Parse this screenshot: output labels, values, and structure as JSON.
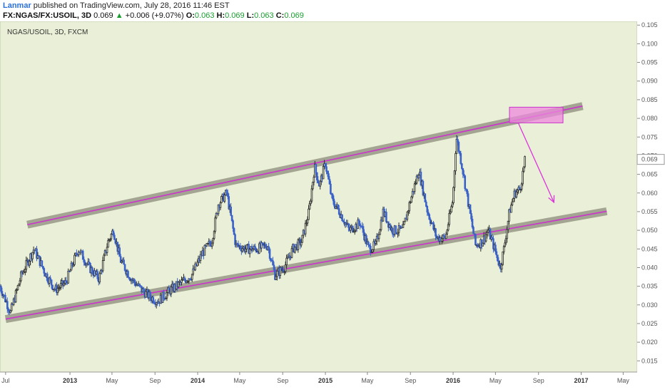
{
  "header": {
    "author": "Lanmar",
    "published_text": " published on TradingView.com, July 28, 2016 11:46 EST",
    "symbol": "FX:NGAS/FX:USOIL, 3D",
    "last": "0.069",
    "change": "+0.006 (+9.07%)",
    "o_label": "O:",
    "o_value": "0.063",
    "h_label": "H:",
    "h_value": "0.069",
    "l_label": "L:",
    "l_value": "0.063",
    "c_label": "C:",
    "c_value": "0.069"
  },
  "chart_data": {
    "type": "line",
    "title": "NGAS/USOIL, 3D, FXCM",
    "ylim": [
      0.012,
      0.106
    ],
    "y_ticks": [
      "0.105",
      "0.100",
      "0.095",
      "0.090",
      "0.085",
      "0.080",
      "0.075",
      "0.070",
      "0.065",
      "0.060",
      "0.055",
      "0.050",
      "0.045",
      "0.040",
      "0.035",
      "0.030",
      "0.025",
      "0.020",
      "0.015"
    ],
    "y_tick_values": [
      0.105,
      0.1,
      0.095,
      0.09,
      0.085,
      0.08,
      0.075,
      0.07,
      0.065,
      0.06,
      0.055,
      0.05,
      0.045,
      0.04,
      0.035,
      0.03,
      0.025,
      0.02,
      0.015
    ],
    "last_price_label": "0.069",
    "last_price": 0.069,
    "x_range": [
      "2012-06-15",
      "2017-06-10"
    ],
    "x_ticks": [
      {
        "label": "Jul",
        "date": "2012-07-01",
        "bold": false
      },
      {
        "label": "2013",
        "date": "2013-01-01",
        "bold": true
      },
      {
        "label": "May",
        "date": "2013-05-01",
        "bold": false
      },
      {
        "label": "Sep",
        "date": "2013-09-01",
        "bold": false
      },
      {
        "label": "2014",
        "date": "2014-01-01",
        "bold": true
      },
      {
        "label": "May",
        "date": "2014-05-01",
        "bold": false
      },
      {
        "label": "Sep",
        "date": "2014-09-01",
        "bold": false
      },
      {
        "label": "2015",
        "date": "2015-01-01",
        "bold": true
      },
      {
        "label": "May",
        "date": "2015-05-01",
        "bold": false
      },
      {
        "label": "Sep",
        "date": "2015-09-01",
        "bold": false
      },
      {
        "label": "2016",
        "date": "2016-01-01",
        "bold": true
      },
      {
        "label": "May",
        "date": "2016-05-01",
        "bold": false
      },
      {
        "label": "Sep",
        "date": "2016-09-01",
        "bold": false
      },
      {
        "label": "2017",
        "date": "2017-01-01",
        "bold": true
      },
      {
        "label": "May",
        "date": "2017-05-01",
        "bold": false
      }
    ],
    "series": [
      {
        "x": [
          "2012-06-15",
          "2012-07-15",
          "2012-08-15",
          "2012-09-20",
          "2012-10-25",
          "2012-11-20",
          "2012-12-20",
          "2013-01-25",
          "2013-02-25",
          "2013-03-25",
          "2013-04-20",
          "2013-05-05",
          "2013-05-25",
          "2013-06-25",
          "2013-07-25",
          "2013-08-20",
          "2013-09-10",
          "2013-10-15",
          "2013-11-15",
          "2013-12-15",
          "2014-01-15",
          "2014-02-10",
          "2014-03-01",
          "2014-03-25",
          "2014-04-20",
          "2014-05-20",
          "2014-06-20",
          "2014-07-20",
          "2014-08-10",
          "2014-09-05",
          "2014-09-30",
          "2014-10-25",
          "2014-11-15",
          "2014-12-01",
          "2014-12-15",
          "2015-01-01",
          "2015-01-20",
          "2015-02-10",
          "2015-03-10",
          "2015-04-10",
          "2015-05-05",
          "2015-05-25",
          "2015-06-15",
          "2015-07-10",
          "2015-08-10",
          "2015-09-01",
          "2015-09-25",
          "2015-10-20",
          "2015-11-15",
          "2015-12-10",
          "2015-12-31",
          "2016-01-10",
          "2016-01-25",
          "2016-02-10",
          "2016-03-05",
          "2016-03-25",
          "2016-04-10",
          "2016-04-25",
          "2016-05-15",
          "2016-05-25",
          "2016-06-10",
          "2016-06-25",
          "2016-07-10",
          "2016-07-25"
        ],
        "values": [
          0.035,
          0.028,
          0.038,
          0.045,
          0.038,
          0.034,
          0.036,
          0.045,
          0.04,
          0.037,
          0.047,
          0.05,
          0.042,
          0.037,
          0.034,
          0.032,
          0.031,
          0.034,
          0.036,
          0.038,
          0.044,
          0.047,
          0.057,
          0.06,
          0.046,
          0.045,
          0.045,
          0.046,
          0.038,
          0.04,
          0.045,
          0.047,
          0.055,
          0.067,
          0.062,
          0.068,
          0.058,
          0.055,
          0.05,
          0.052,
          0.045,
          0.046,
          0.055,
          0.05,
          0.05,
          0.058,
          0.066,
          0.055,
          0.048,
          0.048,
          0.058,
          0.075,
          0.068,
          0.059,
          0.046,
          0.047,
          0.05,
          0.046,
          0.04,
          0.045,
          0.055,
          0.06,
          0.061,
          0.069
        ]
      }
    ],
    "trendlines": [
      {
        "name": "upper-channel",
        "from": [
          "2012-09-01",
          0.0515
        ],
        "to": [
          "2017-01-05",
          0.0833
        ]
      },
      {
        "name": "lower-channel",
        "from": [
          "2012-07-01",
          0.0262
        ],
        "to": [
          "2017-03-15",
          0.0551
        ]
      }
    ],
    "target_box": {
      "from": [
        "2016-06-10",
        0.0788
      ],
      "to": [
        "2016-11-10",
        0.083
      ]
    },
    "projection_arrow": {
      "from": [
        "2016-07-05",
        0.0788
      ],
      "to": [
        "2016-10-15",
        0.0575
      ]
    },
    "colors": {
      "background": "#eaf0d7",
      "up_candle": "#2b2b2b",
      "down_candle": "#3a62c9",
      "channel_band": "#8b8b7a",
      "channel_line": "#cc33cc",
      "target_fill": "#ee88dd",
      "target_stroke": "#cc33cc",
      "arrow": "#dd33dd"
    },
    "grid": false,
    "legend": "none"
  }
}
